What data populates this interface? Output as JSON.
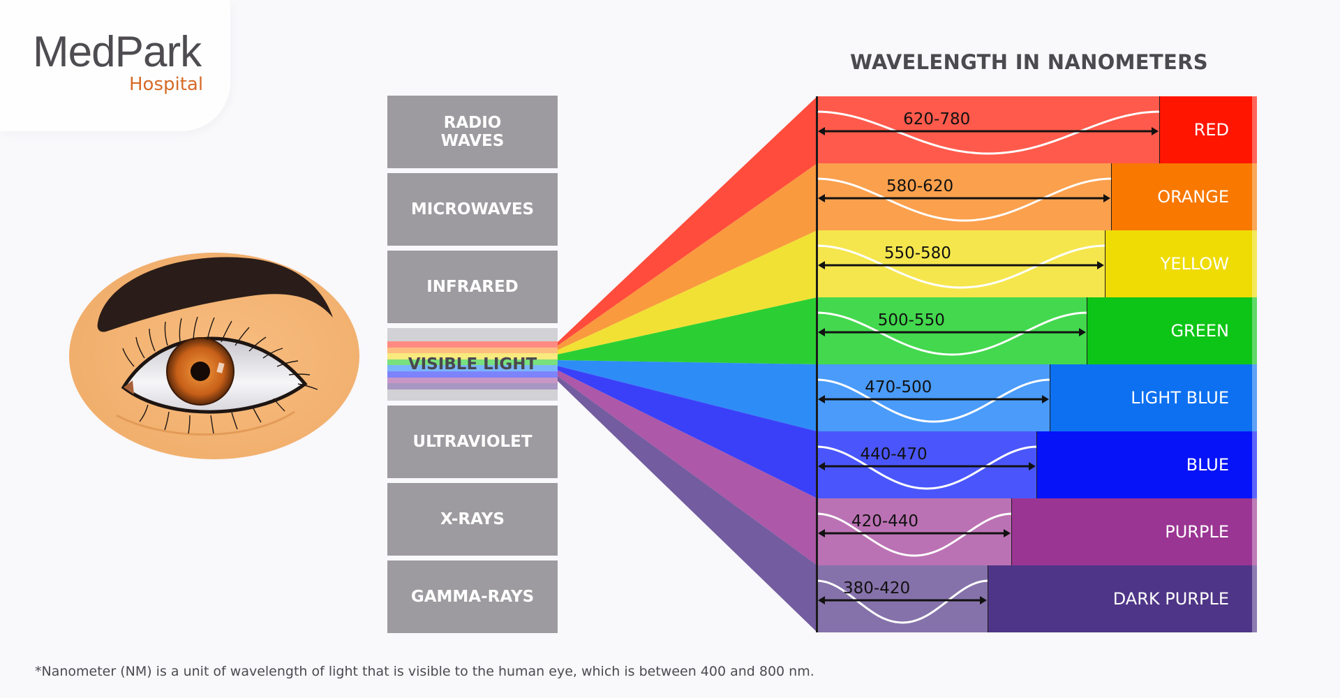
{
  "logo": {
    "main": "MedPark",
    "sub": "Hospital",
    "main_color": "#4e4c50",
    "sub_color": "#d66a28"
  },
  "heading": "WAVELENGTH IN NANOMETERS",
  "spectrum": [
    {
      "label_line1": "RADIO",
      "label_line2": "WAVES"
    },
    {
      "label_line1": "MICROWAVES",
      "label_line2": ""
    },
    {
      "label_line1": "INFRARED",
      "label_line2": ""
    },
    {
      "label_line1": "VISIBLE LIGHT",
      "label_line2": ""
    },
    {
      "label_line1": "ULTRAVIOLET",
      "label_line2": ""
    },
    {
      "label_line1": "X-RAYS",
      "label_line2": ""
    },
    {
      "label_line1": "GAMMA-RAYS",
      "label_line2": ""
    }
  ],
  "colors": [
    {
      "name": "RED",
      "range": "620-780",
      "light": "#ff5a4c",
      "solid": "#ff1500",
      "light_width": 492
    },
    {
      "name": "ORANGE",
      "range": "580-620",
      "light": "#fba04d",
      "solid": "#f87800",
      "light_width": 423
    },
    {
      "name": "YELLOW",
      "range": "550-580",
      "light": "#f5e64d",
      "solid": "#efdc05",
      "light_width": 414
    },
    {
      "name": "GREEN",
      "range": "500-550",
      "light": "#43d84e",
      "solid": "#0dc516",
      "light_width": 388
    },
    {
      "name": "LIGHT BLUE",
      "range": "470-500",
      "light": "#4a9bfa",
      "solid": "#0c70f1",
      "light_width": 335
    },
    {
      "name": "BLUE",
      "range": "440-470",
      "light": "#4a56fc",
      "solid": "#0613f9",
      "light_width": 316
    },
    {
      "name": "PURPLE",
      "range": "420-440",
      "light": "#bb72b4",
      "solid": "#9b3593",
      "light_width": 280
    },
    {
      "name": "DARK PURPLE",
      "range": "380-420",
      "light": "#8672aa",
      "solid": "#4f3587",
      "light_width": 246
    }
  ],
  "footnote": "*Nanometer (NM) is a unit of wavelength of light that is visible to the human eye, which is between 400 and 800 nm."
}
